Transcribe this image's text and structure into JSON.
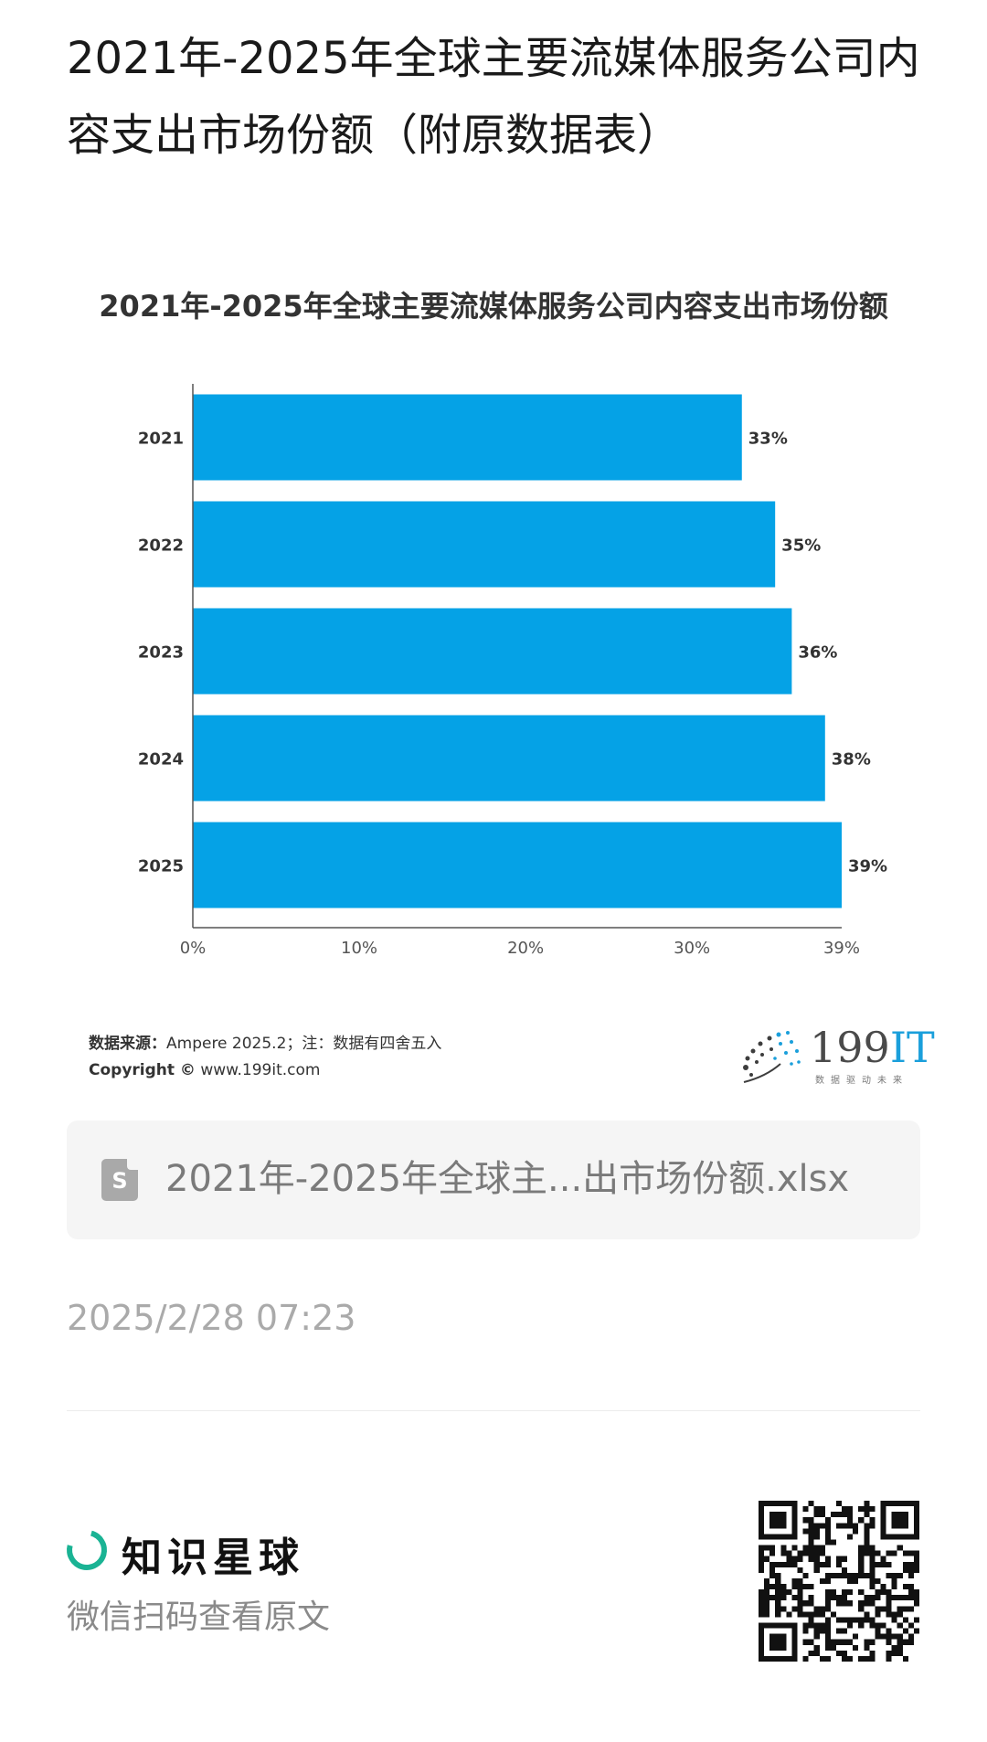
{
  "page": {
    "title": "2021年-2025年全球主要流媒体服务公司内容支出市场份额（附原数据表）"
  },
  "chart_data": {
    "type": "bar",
    "orientation": "horizontal",
    "title": "2021年-2025年全球主要流媒体服务公司内容支出市场份额",
    "categories": [
      "2021",
      "2022",
      "2023",
      "2024",
      "2025"
    ],
    "values": [
      33,
      35,
      36,
      38,
      39
    ],
    "data_labels": [
      "33%",
      "35%",
      "36%",
      "38%",
      "39%"
    ],
    "xlim": [
      0,
      39
    ],
    "x_ticks": [
      0,
      10,
      20,
      30,
      39
    ],
    "x_tick_labels": [
      "0%",
      "10%",
      "20%",
      "30%",
      "39%"
    ],
    "xlabel": "",
    "ylabel": "",
    "grid": false,
    "bar_color": "#05a2e6"
  },
  "source": {
    "label": "数据来源：",
    "text": "Ampere  2025.2；注：数据有四舍五入",
    "copyright_label": "Copyright ©",
    "copyright_url": "www.199it.com"
  },
  "logo": {
    "number": "199",
    "suffix": "IT",
    "slogan": "数据驱动未来"
  },
  "attachment": {
    "icon": "spreadsheet-file-icon",
    "icon_letter": "S",
    "file_name": "2021年-2025年全球主...出市场份额.xlsx"
  },
  "timestamp": "2025/2/28 07:23",
  "footer": {
    "brand_name": "知识星球",
    "brand_icon": "planet-ring-icon",
    "brand_color": "#1ab394",
    "subtitle": "微信扫码查看原文",
    "qr_icon": "qr-code-icon"
  }
}
